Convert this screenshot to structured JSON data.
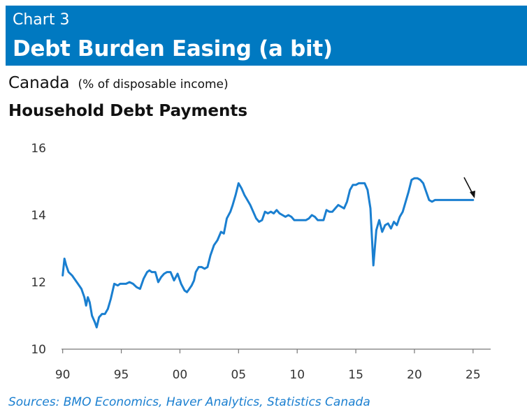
{
  "header": {
    "chart_number": "Chart 3",
    "title": "Debt Burden Easing (a bit)"
  },
  "subtitle": {
    "region": "Canada",
    "unit": "(% of disposable income)"
  },
  "series_title": "Household Debt Payments",
  "source": "Sources: BMO Economics, Haver Analytics, Statistics Canada",
  "colors": {
    "banner": "#0079c1",
    "line": "#1a7fd0",
    "source_text": "#1a7fd0",
    "axis": "#777777"
  },
  "chart_data": {
    "type": "line",
    "title": "Household Debt Payments",
    "ylabel": "% of disposable income",
    "xlabel": "",
    "x_ticks": [
      1990,
      1995,
      2000,
      2005,
      2010,
      2015,
      2020,
      2025
    ],
    "x_tick_labels": [
      "90",
      "95",
      "00",
      "05",
      "10",
      "15",
      "20",
      "25"
    ],
    "y_ticks": [
      10,
      12,
      14,
      16
    ],
    "y_tick_labels": [
      "10",
      "12",
      "14",
      "16"
    ],
    "xlim": [
      1989.9,
      2026.5
    ],
    "ylim": [
      10,
      16
    ],
    "annotation": "arrow pointing down at latest values",
    "series": [
      {
        "name": "Household Debt Payments",
        "x": [
          1990.0,
          1990.15,
          1990.3,
          1990.5,
          1990.8,
          1991.0,
          1991.3,
          1991.6,
          1991.85,
          1992.0,
          1992.15,
          1992.3,
          1992.5,
          1992.75,
          1992.9,
          1993.1,
          1993.35,
          1993.6,
          1993.85,
          1994.1,
          1994.4,
          1994.7,
          1994.9,
          1995.1,
          1995.4,
          1995.7,
          1996.0,
          1996.3,
          1996.6,
          1996.9,
          1997.2,
          1997.4,
          1997.6,
          1997.9,
          1998.15,
          1998.4,
          1998.65,
          1998.9,
          1999.2,
          1999.5,
          1999.8,
          2000.1,
          2000.4,
          2000.6,
          2000.8,
          2001.0,
          2001.2,
          2001.35,
          2001.6,
          2001.85,
          2002.1,
          2002.35,
          2002.6,
          2002.9,
          2003.2,
          2003.5,
          2003.75,
          2004.0,
          2004.3,
          2004.5,
          2004.75,
          2005.0,
          2005.25,
          2005.5,
          2005.75,
          2006.0,
          2006.25,
          2006.5,
          2006.75,
          2007.0,
          2007.25,
          2007.5,
          2007.75,
          2008.0,
          2008.25,
          2008.5,
          2008.75,
          2009.0,
          2009.25,
          2009.5,
          2009.75,
          2010.0,
          2010.25,
          2010.5,
          2010.75,
          2011.0,
          2011.25,
          2011.5,
          2011.75,
          2012.0,
          2012.25,
          2012.5,
          2012.75,
          2013.0,
          2013.25,
          2013.5,
          2013.75,
          2014.0,
          2014.25,
          2014.5,
          2014.75,
          2015.0,
          2015.25,
          2015.5,
          2015.75,
          2016.0,
          2016.25,
          2016.5,
          2016.75,
          2017.0,
          2017.25,
          2017.5,
          2017.75,
          2018.0,
          2018.25,
          2018.5,
          2018.75,
          2019.0,
          2019.25,
          2019.5,
          2019.75,
          2020.0,
          2020.25,
          2020.5,
          2020.75,
          2021.0,
          2021.25,
          2021.5,
          2021.75,
          2022.0,
          2022.25,
          2022.5,
          2022.75,
          2023.0,
          2023.25,
          2023.5,
          2023.75,
          2024.0,
          2024.25,
          2024.5,
          2024.75,
          2025.0
        ],
        "values": [
          12.2,
          12.7,
          12.5,
          12.3,
          12.2,
          12.1,
          11.95,
          11.8,
          11.55,
          11.3,
          11.55,
          11.4,
          11.0,
          10.8,
          10.65,
          10.95,
          11.05,
          11.05,
          11.2,
          11.5,
          11.95,
          11.9,
          11.95,
          11.95,
          11.95,
          12.0,
          11.95,
          11.85,
          11.8,
          12.1,
          12.3,
          12.35,
          12.3,
          12.3,
          12.0,
          12.15,
          12.25,
          12.3,
          12.3,
          12.05,
          12.25,
          11.95,
          11.75,
          11.7,
          11.8,
          11.9,
          12.05,
          12.3,
          12.45,
          12.45,
          12.4,
          12.45,
          12.8,
          13.1,
          13.25,
          13.5,
          13.45,
          13.9,
          14.1,
          14.3,
          14.6,
          14.95,
          14.8,
          14.6,
          14.45,
          14.3,
          14.1,
          13.9,
          13.8,
          13.85,
          14.1,
          14.05,
          14.1,
          14.05,
          14.15,
          14.05,
          14.0,
          13.95,
          14.0,
          13.95,
          13.85,
          13.85,
          13.85,
          13.85,
          13.85,
          13.9,
          14.0,
          13.95,
          13.85,
          13.85,
          13.85,
          14.15,
          14.1,
          14.1,
          14.2,
          14.3,
          14.25,
          14.2,
          14.4,
          14.75,
          14.9,
          14.9,
          14.95,
          14.95,
          14.95,
          14.75,
          14.2,
          12.5,
          13.55,
          13.85,
          13.5,
          13.7,
          13.75,
          13.6,
          13.8,
          13.7,
          13.95,
          14.1,
          14.4,
          14.7,
          15.05,
          15.1,
          15.1,
          15.05,
          14.95,
          14.7,
          14.45,
          14.4,
          14.45,
          14.45,
          14.45,
          14.45,
          14.45,
          14.45,
          14.45,
          14.45,
          14.45,
          14.45,
          14.45,
          14.45,
          14.45,
          14.45
        ]
      }
    ]
  }
}
